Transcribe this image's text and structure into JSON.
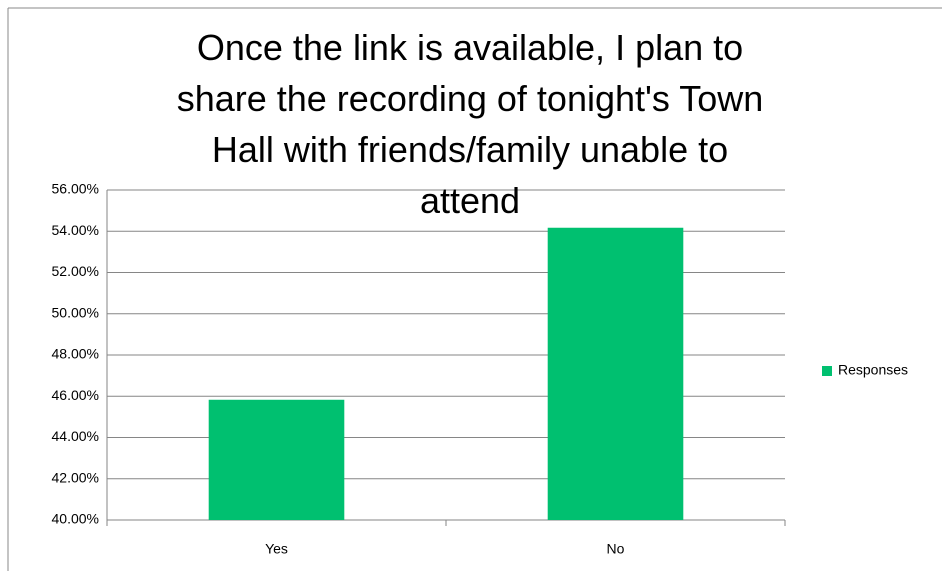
{
  "chart_data": {
    "type": "bar",
    "title": "Once the link is available, I plan to share the recording of tonight's Town Hall with friends/family unable to attend",
    "categories": [
      "Yes",
      "No"
    ],
    "series": [
      {
        "name": "Responses",
        "color": "#00c070",
        "values": [
          45.83,
          54.17
        ]
      }
    ],
    "ylim": [
      40,
      56
    ],
    "yticks": [
      {
        "value": 40,
        "label": "40.00%"
      },
      {
        "value": 42,
        "label": "42.00%"
      },
      {
        "value": 44,
        "label": "44.00%"
      },
      {
        "value": 46,
        "label": "46.00%"
      },
      {
        "value": 48,
        "label": "48.00%"
      },
      {
        "value": 50,
        "label": "50.00%"
      },
      {
        "value": 52,
        "label": "52.00%"
      },
      {
        "value": 54,
        "label": "54.00%"
      },
      {
        "value": 56,
        "label": "56.00%"
      }
    ],
    "grid": true,
    "legend": "right"
  }
}
